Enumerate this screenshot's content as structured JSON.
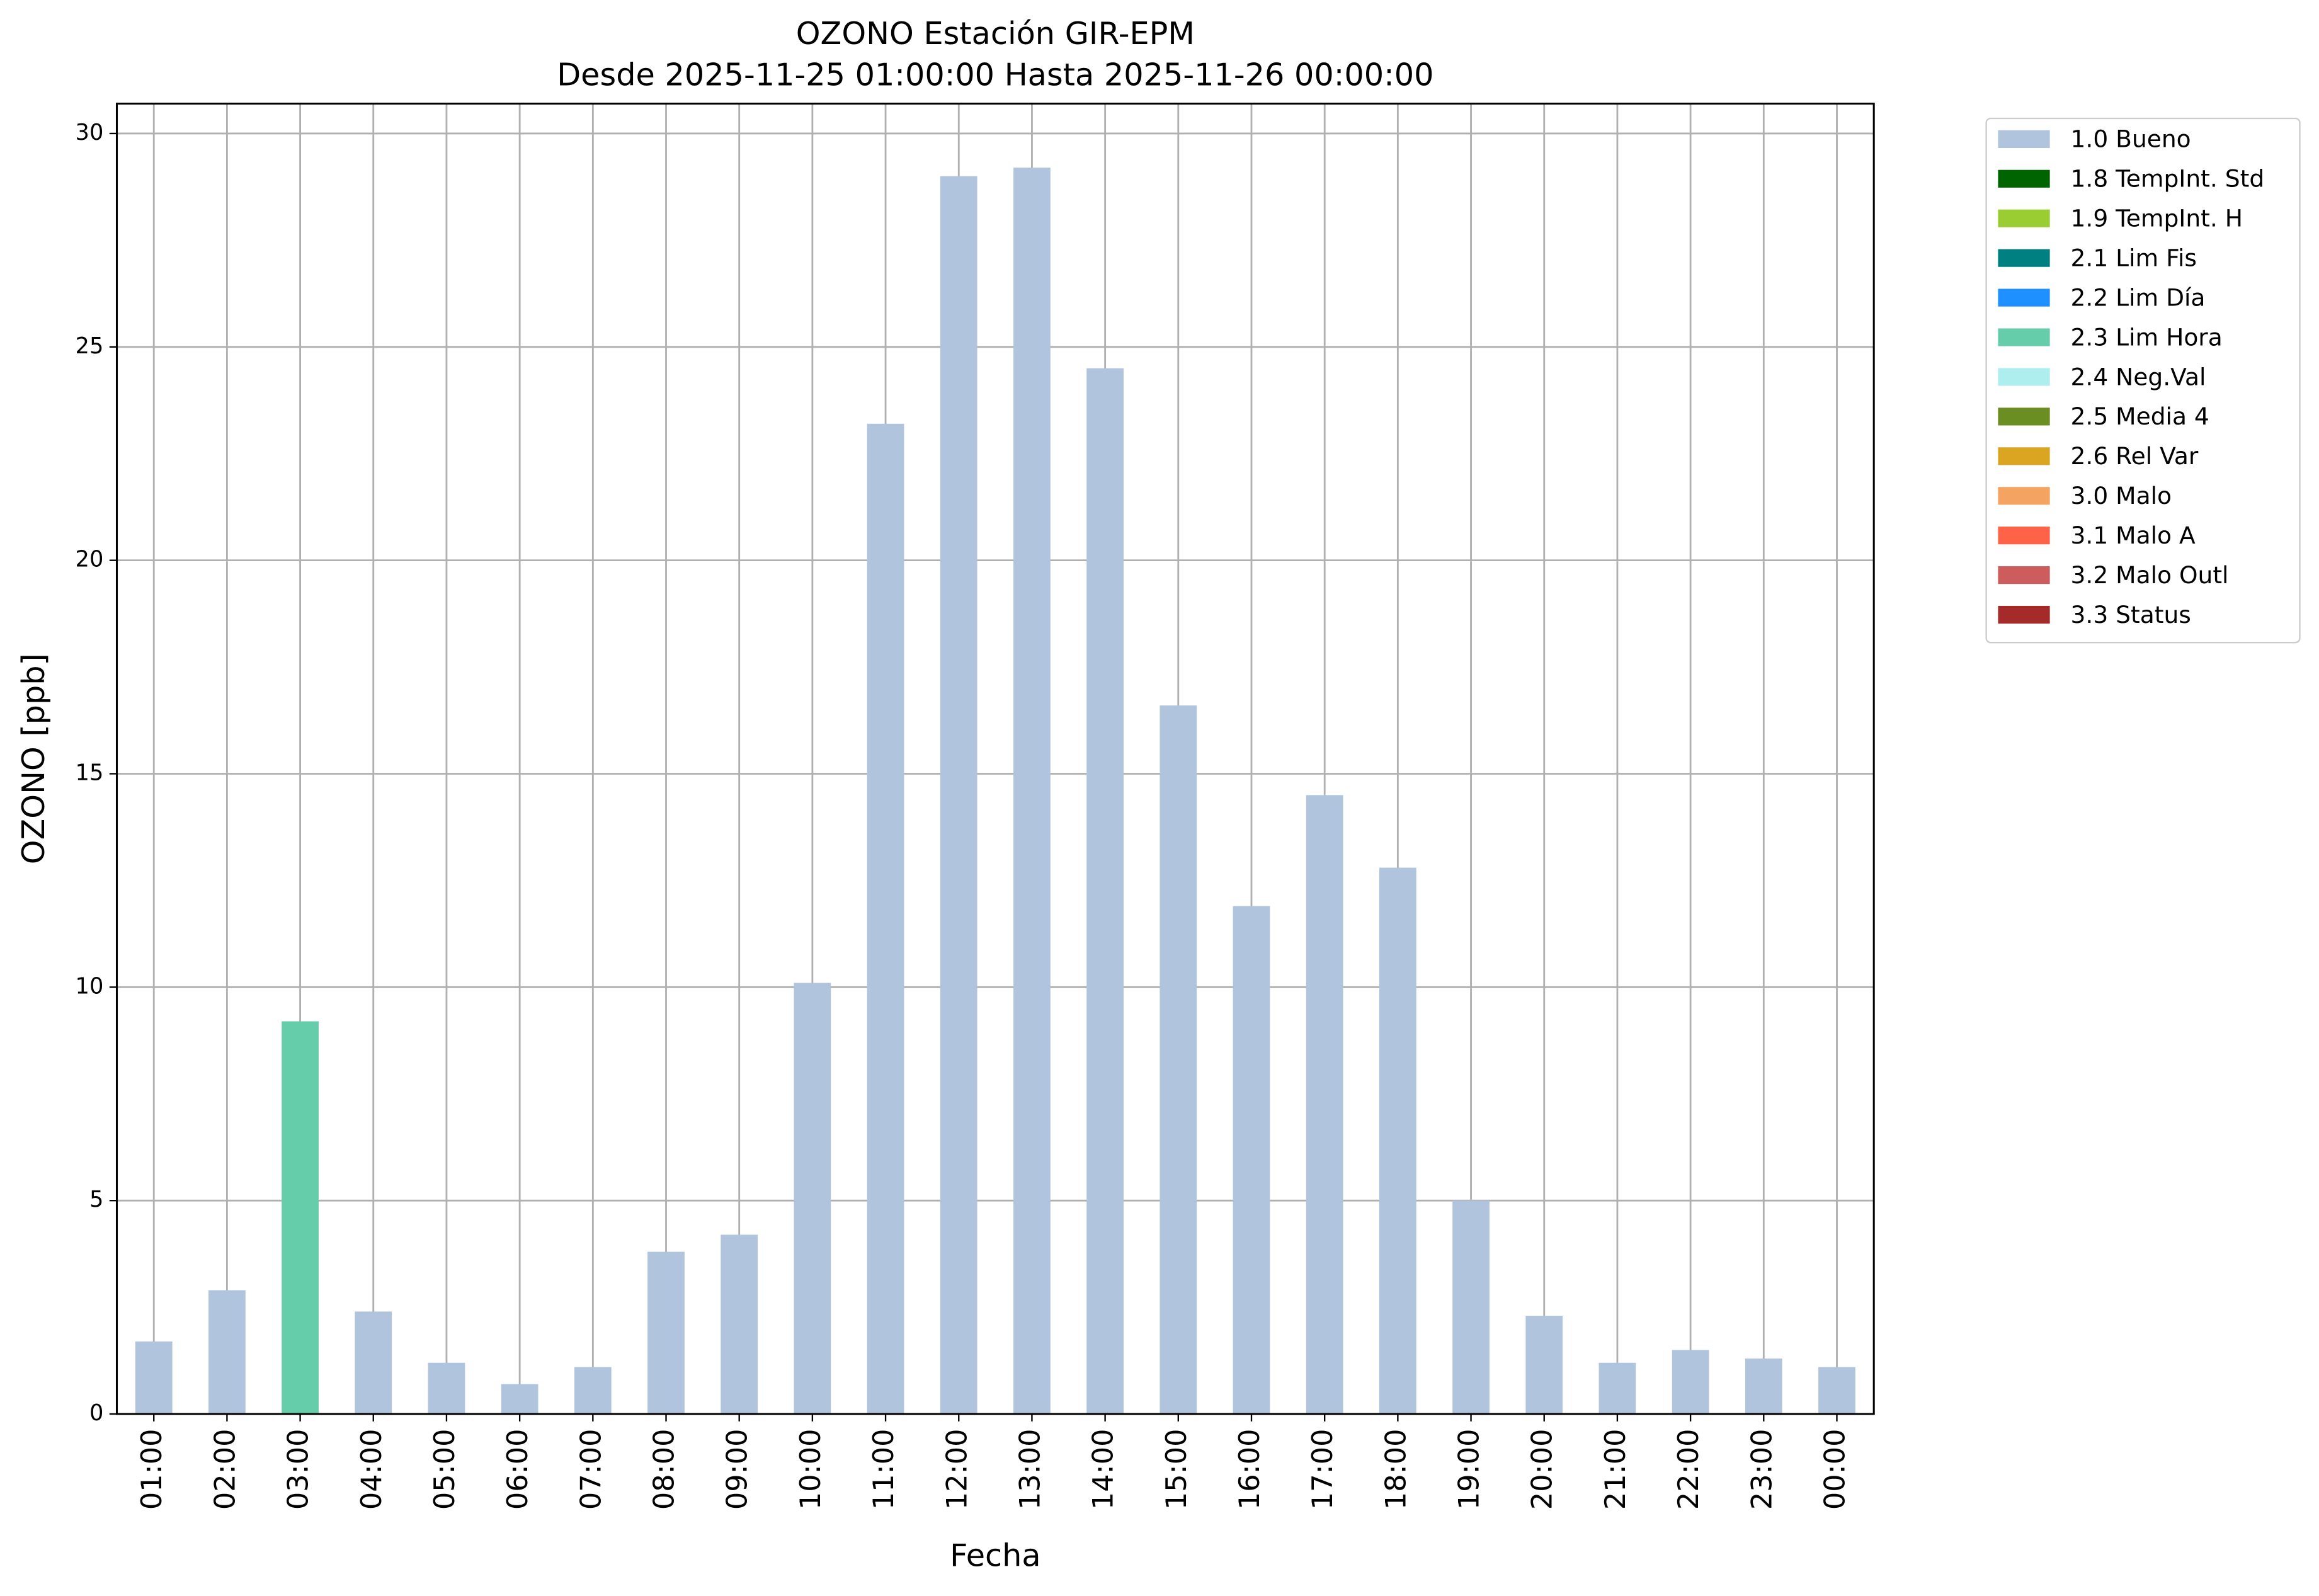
{
  "chart_data": {
    "type": "bar",
    "stacked": true,
    "title": "OZONO Estación GIR-EPM",
    "subtitle": "Desde 2025-11-25 01:00:00 Hasta 2025-11-26 00:00:00",
    "x_label": "Fecha",
    "y_label": "OZONO [ppb]",
    "categories": [
      "01:00",
      "02:00",
      "03:00",
      "04:00",
      "05:00",
      "06:00",
      "07:00",
      "08:00",
      "09:00",
      "10:00",
      "11:00",
      "12:00",
      "13:00",
      "14:00",
      "15:00",
      "16:00",
      "17:00",
      "18:00",
      "19:00",
      "20:00",
      "21:00",
      "22:00",
      "23:00",
      "00:00"
    ],
    "series": [
      {
        "name": "1.0 Bueno",
        "color": "#b0c4de",
        "values": [
          1.7,
          2.9,
          null,
          2.4,
          1.2,
          0.7,
          1.1,
          3.8,
          4.2,
          10.1,
          23.2,
          29.0,
          29.2,
          24.5,
          16.6,
          11.9,
          14.5,
          12.8,
          5.0,
          2.3,
          1.2,
          1.5,
          1.3,
          1.1
        ]
      },
      {
        "name": "1.8 TempInt. Std",
        "color": "#006400",
        "values": [
          null,
          null,
          null,
          null,
          null,
          null,
          null,
          null,
          null,
          null,
          null,
          null,
          null,
          null,
          null,
          null,
          null,
          null,
          null,
          null,
          null,
          null,
          null,
          null
        ]
      },
      {
        "name": "1.9 TempInt. H",
        "color": "#9acd32",
        "values": [
          null,
          null,
          null,
          null,
          null,
          null,
          null,
          null,
          null,
          null,
          null,
          null,
          null,
          null,
          null,
          null,
          null,
          null,
          null,
          null,
          null,
          null,
          null,
          null
        ]
      },
      {
        "name": "2.1 Lim Fis",
        "color": "#008080",
        "values": [
          null,
          null,
          null,
          null,
          null,
          null,
          null,
          null,
          null,
          null,
          null,
          null,
          null,
          null,
          null,
          null,
          null,
          null,
          null,
          null,
          null,
          null,
          null,
          null
        ]
      },
      {
        "name": "2.2 Lim Día",
        "color": "#1e90ff",
        "values": [
          null,
          null,
          null,
          null,
          null,
          null,
          null,
          null,
          null,
          null,
          null,
          null,
          null,
          null,
          null,
          null,
          null,
          null,
          null,
          null,
          null,
          null,
          null,
          null
        ]
      },
      {
        "name": "2.3 Lim Hora",
        "color": "#66cdaa",
        "values": [
          null,
          null,
          9.2,
          null,
          null,
          null,
          null,
          null,
          null,
          null,
          null,
          null,
          null,
          null,
          null,
          null,
          null,
          null,
          null,
          null,
          null,
          null,
          null,
          null
        ]
      },
      {
        "name": "2.4 Neg.Val",
        "color": "#afeeee",
        "values": [
          null,
          null,
          null,
          null,
          null,
          null,
          null,
          null,
          null,
          null,
          null,
          null,
          null,
          null,
          null,
          null,
          null,
          null,
          null,
          null,
          null,
          null,
          null,
          null
        ]
      },
      {
        "name": "2.5 Media 4",
        "color": "#6b8e23",
        "values": [
          null,
          null,
          null,
          null,
          null,
          null,
          null,
          null,
          null,
          null,
          null,
          null,
          null,
          null,
          null,
          null,
          null,
          null,
          null,
          null,
          null,
          null,
          null,
          null
        ]
      },
      {
        "name": "2.6 Rel Var",
        "color": "#daa520",
        "values": [
          null,
          null,
          null,
          null,
          null,
          null,
          null,
          null,
          null,
          null,
          null,
          null,
          null,
          null,
          null,
          null,
          null,
          null,
          null,
          null,
          null,
          null,
          null,
          null
        ]
      },
      {
        "name": "3.0 Malo",
        "color": "#f4a460",
        "values": [
          null,
          null,
          null,
          null,
          null,
          null,
          null,
          null,
          null,
          null,
          null,
          null,
          null,
          null,
          null,
          null,
          null,
          null,
          null,
          null,
          null,
          null,
          null,
          null
        ]
      },
      {
        "name": "3.1 Malo A",
        "color": "#ff6347",
        "values": [
          null,
          null,
          null,
          null,
          null,
          null,
          null,
          null,
          null,
          null,
          null,
          null,
          null,
          null,
          null,
          null,
          null,
          null,
          null,
          null,
          null,
          null,
          null,
          null
        ]
      },
      {
        "name": "3.2 Malo Outl",
        "color": "#cd5c5c",
        "values": [
          null,
          null,
          null,
          null,
          null,
          null,
          null,
          null,
          null,
          null,
          null,
          null,
          null,
          null,
          null,
          null,
          null,
          null,
          null,
          null,
          null,
          null,
          null,
          null
        ]
      },
      {
        "name": "3.3 Status",
        "color": "#a52a2a",
        "values": [
          null,
          null,
          null,
          null,
          null,
          null,
          null,
          null,
          null,
          null,
          null,
          null,
          null,
          null,
          null,
          null,
          null,
          null,
          null,
          null,
          null,
          null,
          null,
          null
        ]
      }
    ],
    "ylim": [
      0,
      30.7
    ],
    "yticks": [
      0,
      5,
      10,
      15,
      20,
      25,
      30
    ],
    "grid": true,
    "legend": "right"
  }
}
